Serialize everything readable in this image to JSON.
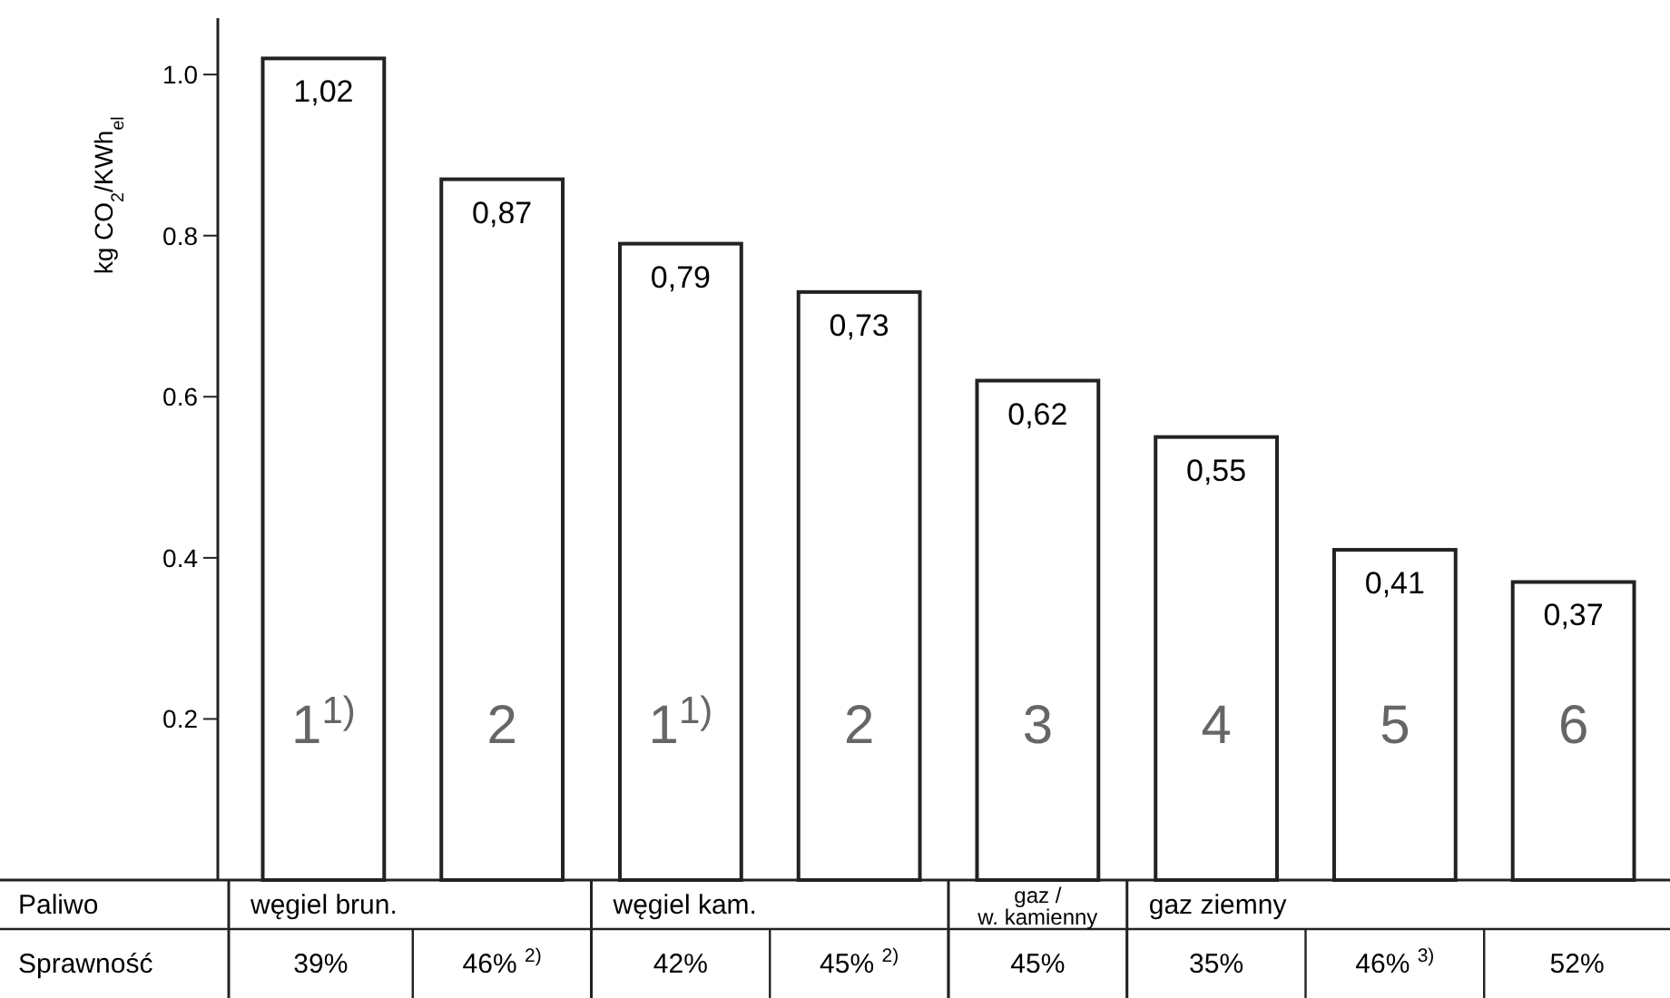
{
  "chart_data": {
    "type": "bar",
    "ylabel": "kg CO$_{2}$/KWh$_{el}$",
    "categories": [
      "1$^{1)}$",
      "2",
      "1$^{1)}$",
      "2",
      "3",
      "4",
      "5",
      "6"
    ],
    "values": [
      1.02,
      0.87,
      0.79,
      0.73,
      0.62,
      0.55,
      0.41,
      0.37
    ],
    "value_labels": [
      "1,02",
      "0,87",
      "0,79",
      "0,73",
      "0,62",
      "0,55",
      "0,41",
      "0,37"
    ],
    "color": "#ffffff",
    "ylim": [
      0,
      1.07
    ],
    "yticks": [
      {
        "value": 0.2,
        "label": "0.2"
      },
      {
        "value": 0.4,
        "label": "0.4"
      },
      {
        "value": 0.6,
        "label": "0.6"
      },
      {
        "value": 0.8,
        "label": "0.8"
      },
      {
        "value": 1.0,
        "label": "1.0"
      }
    ],
    "grid": false,
    "annotations": [
      "Paliwo",
      "węgiel  brun.",
      "węgiel kam.",
      "gaz /\nw. kamienny",
      "gaz ziemny",
      "Sprawność",
      "39%",
      "46% $^{2)}$",
      "42%",
      "45% $^{2)}$",
      "45%",
      "35%",
      "46% $^{3)}$",
      "52%"
    ]
  }
}
